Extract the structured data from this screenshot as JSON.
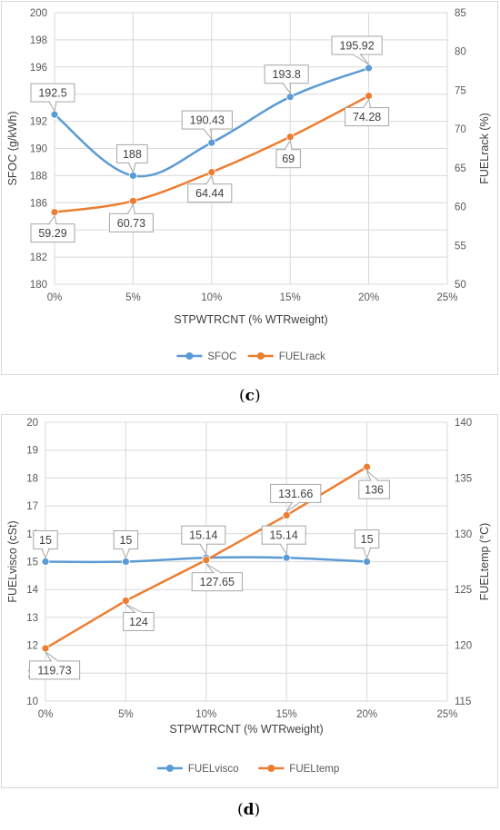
{
  "chart_data": [
    {
      "type": "line",
      "id": "c",
      "caption": "c",
      "x": [
        "0%",
        "5%",
        "10%",
        "15%",
        "20%"
      ],
      "x_ticks": [
        "0%",
        "5%",
        "10%",
        "15%",
        "20%",
        "25%"
      ],
      "xlabel": "STPWTRCNT (% WTRweight)",
      "ylabel": "SFOC (g/kWh)",
      "y2label": "FUELrack (%)",
      "ylim": [
        180,
        200
      ],
      "y_ticks": [
        180,
        182,
        184,
        186,
        188,
        190,
        192,
        194,
        196,
        198,
        200
      ],
      "y2lim": [
        50,
        85
      ],
      "y2_ticks": [
        50,
        55,
        60,
        65,
        70,
        75,
        80,
        85
      ],
      "grid": true,
      "legend_position": "bottom",
      "series": [
        {
          "name": "SFOC",
          "axis": "left",
          "color": "#5b9bd5",
          "smooth": true,
          "values": [
            192.5,
            188,
            190.43,
            193.8,
            195.92
          ],
          "labels": [
            "192.5",
            "188",
            "190.43",
            "193.8",
            "195.92"
          ]
        },
        {
          "name": "FUELrack",
          "axis": "right",
          "color": "#ed7d31",
          "smooth": true,
          "values": [
            59.29,
            60.73,
            64.44,
            69,
            74.28
          ],
          "labels": [
            "59.29",
            "60.73",
            "64.44",
            "69",
            "74.28"
          ]
        }
      ]
    },
    {
      "type": "line",
      "id": "d",
      "caption": "d",
      "x": [
        "0%",
        "5%",
        "10%",
        "15%",
        "20%"
      ],
      "x_ticks": [
        "0%",
        "5%",
        "10%",
        "15%",
        "20%",
        "25%"
      ],
      "xlabel": "STPWTRCNT (% WTRweight)",
      "ylabel": "FUELvisco (cSt)",
      "y2label": "FUELtemp (°C)",
      "ylim": [
        10,
        20
      ],
      "y_ticks": [
        10,
        11,
        12,
        13,
        14,
        15,
        16,
        17,
        18,
        19,
        20
      ],
      "y2lim": [
        115,
        140
      ],
      "y2_ticks": [
        115,
        120,
        125,
        130,
        135,
        140
      ],
      "grid": true,
      "legend_position": "bottom",
      "series": [
        {
          "name": "FUELvisco",
          "axis": "left",
          "color": "#5b9bd5",
          "smooth": true,
          "values": [
            15,
            15,
            15.14,
            15.14,
            15
          ],
          "labels": [
            "15",
            "15",
            "15.14",
            "15.14",
            "15"
          ]
        },
        {
          "name": "FUELtemp",
          "axis": "right",
          "color": "#ed7d31",
          "smooth": false,
          "values": [
            119.73,
            124,
            127.65,
            131.66,
            136
          ],
          "labels": [
            "119.73",
            "124",
            "127.65",
            "131.66",
            "136"
          ]
        }
      ]
    }
  ]
}
